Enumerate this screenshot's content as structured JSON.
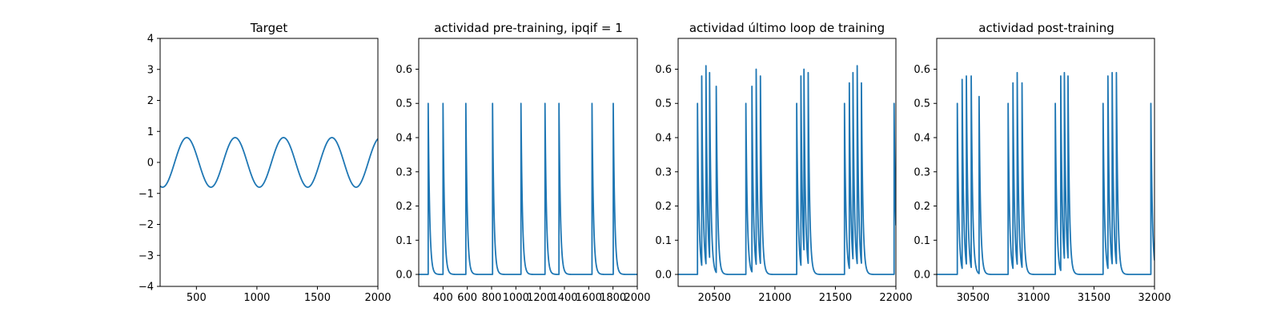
{
  "chart_data": [
    {
      "type": "line",
      "title": "Target",
      "xlabel": "",
      "ylabel": "",
      "xlim": [
        200,
        2000
      ],
      "ylim": [
        -4,
        4
      ],
      "xticks": [
        500,
        1000,
        1500,
        2000
      ],
      "yticks": [
        -4,
        -3,
        -2,
        -1,
        0,
        1,
        2,
        3,
        4
      ],
      "color": "#1f77b4",
      "series": [
        {
          "name": "target",
          "signal": "sine",
          "amplitude": 0.8,
          "period": 400,
          "phase_peak_at": 420
        }
      ]
    },
    {
      "type": "line",
      "title": "actividad pre-training, ipqif = 1",
      "xlabel": "",
      "ylabel": "",
      "xlim": [
        200,
        2000
      ],
      "ylim": [
        -0.035,
        0.69
      ],
      "xticks": [
        400,
        600,
        800,
        1000,
        1200,
        1400,
        1600,
        1800,
        2000
      ],
      "yticks": [
        0.0,
        0.1,
        0.2,
        0.3,
        0.4,
        0.5,
        0.6
      ],
      "color": "#1f77b4",
      "series": [
        {
          "name": "actividad",
          "signal": "spikes",
          "baseline": 0.0,
          "decay": 12,
          "spikes": [
            {
              "t": 278,
              "v": 0.5
            },
            {
              "t": 400,
              "v": 0.5
            },
            {
              "t": 588,
              "v": 0.5
            },
            {
              "t": 808,
              "v": 0.5
            },
            {
              "t": 1042,
              "v": 0.5
            },
            {
              "t": 1240,
              "v": 0.5
            },
            {
              "t": 1355,
              "v": 0.5
            },
            {
              "t": 1627,
              "v": 0.5
            },
            {
              "t": 1802,
              "v": 0.5
            }
          ]
        }
      ]
    },
    {
      "type": "line",
      "title": "actividad último loop de training",
      "xlabel": "",
      "ylabel": "",
      "xlim": [
        20200,
        22000
      ],
      "ylim": [
        -0.035,
        0.69
      ],
      "xticks": [
        20500,
        21000,
        21500,
        22000
      ],
      "yticks": [
        0.0,
        0.1,
        0.2,
        0.3,
        0.4,
        0.5,
        0.6
      ],
      "color": "#1f77b4",
      "series": [
        {
          "name": "actividad",
          "signal": "spikes",
          "baseline": 0.0,
          "decay": 12,
          "spikes": [
            {
              "t": 20360,
              "v": 0.5
            },
            {
              "t": 20395,
              "v": 0.58
            },
            {
              "t": 20430,
              "v": 0.61
            },
            {
              "t": 20460,
              "v": 0.59
            },
            {
              "t": 20515,
              "v": 0.55
            },
            {
              "t": 20760,
              "v": 0.5
            },
            {
              "t": 20810,
              "v": 0.55
            },
            {
              "t": 20845,
              "v": 0.6
            },
            {
              "t": 20880,
              "v": 0.58
            },
            {
              "t": 21180,
              "v": 0.5
            },
            {
              "t": 21215,
              "v": 0.58
            },
            {
              "t": 21240,
              "v": 0.6
            },
            {
              "t": 21275,
              "v": 0.59
            },
            {
              "t": 21575,
              "v": 0.5
            },
            {
              "t": 21615,
              "v": 0.56
            },
            {
              "t": 21645,
              "v": 0.59
            },
            {
              "t": 21680,
              "v": 0.61
            },
            {
              "t": 21715,
              "v": 0.56
            },
            {
              "t": 21985,
              "v": 0.5
            }
          ]
        }
      ]
    },
    {
      "type": "line",
      "title": "actividad post-training",
      "xlabel": "",
      "ylabel": "",
      "xlim": [
        30200,
        32000
      ],
      "ylim": [
        -0.035,
        0.69
      ],
      "xticks": [
        30500,
        31000,
        31500,
        32000
      ],
      "yticks": [
        0.0,
        0.1,
        0.2,
        0.3,
        0.4,
        0.5,
        0.6
      ],
      "color": "#1f77b4",
      "series": [
        {
          "name": "actividad",
          "signal": "spikes",
          "baseline": 0.0,
          "decay": 12,
          "spikes": [
            {
              "t": 30370,
              "v": 0.5
            },
            {
              "t": 30410,
              "v": 0.57
            },
            {
              "t": 30445,
              "v": 0.58
            },
            {
              "t": 30485,
              "v": 0.58
            },
            {
              "t": 30550,
              "v": 0.52
            },
            {
              "t": 30790,
              "v": 0.5
            },
            {
              "t": 30830,
              "v": 0.56
            },
            {
              "t": 30865,
              "v": 0.59
            },
            {
              "t": 30905,
              "v": 0.56
            },
            {
              "t": 31180,
              "v": 0.5
            },
            {
              "t": 31225,
              "v": 0.58
            },
            {
              "t": 31255,
              "v": 0.59
            },
            {
              "t": 31285,
              "v": 0.58
            },
            {
              "t": 31575,
              "v": 0.5
            },
            {
              "t": 31615,
              "v": 0.58
            },
            {
              "t": 31650,
              "v": 0.59
            },
            {
              "t": 31685,
              "v": 0.59
            },
            {
              "t": 31970,
              "v": 0.5
            }
          ]
        }
      ]
    }
  ]
}
